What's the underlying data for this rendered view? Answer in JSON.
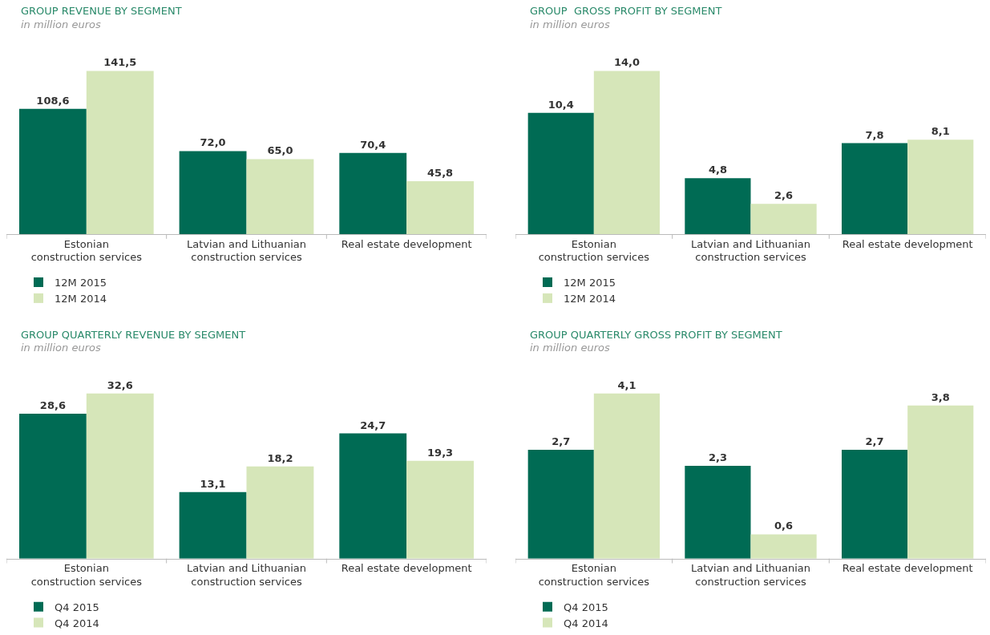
{
  "chart_data": [
    {
      "type": "bar",
      "title": "GROUP REVENUE BY SEGMENT",
      "subtitle": "in million euros",
      "categories": [
        "Estonian\nconstruction services",
        "Latvian and Lithuanian\nconstruction services",
        "Real estate development"
      ],
      "legend": "bottom left",
      "series": [
        {
          "name": "12M 2015",
          "color": "#006b54",
          "values": [
            108.6,
            72.0,
            70.4
          ],
          "value_labels": [
            "108,6",
            "72,0",
            "70,4"
          ]
        },
        {
          "name": "12M 2014",
          "color": "#d6e6b9",
          "values": [
            141.5,
            65.0,
            45.8
          ],
          "value_labels": [
            "141,5",
            "65,0",
            "45,8"
          ]
        }
      ]
    },
    {
      "type": "bar",
      "title": "GROUP  GROSS PROFIT BY SEGMENT",
      "subtitle": "in million euros",
      "categories": [
        "Estonian\nconstruction services",
        "Latvian and Lithuanian\nconstruction services",
        "Real estate development"
      ],
      "legend": "bottom left",
      "series": [
        {
          "name": "12M 2015",
          "color": "#006b54",
          "values": [
            10.4,
            4.8,
            7.8
          ],
          "value_labels": [
            "10,4",
            "4,8",
            "7,8"
          ]
        },
        {
          "name": "12M 2014",
          "color": "#d6e6b9",
          "values": [
            14.0,
            2.6,
            8.1
          ],
          "value_labels": [
            "14,0",
            "2,6",
            "8,1"
          ]
        }
      ]
    },
    {
      "type": "bar",
      "title": "GROUP QUARTERLY REVENUE BY SEGMENT",
      "subtitle": "in million euros",
      "categories": [
        "Estonian\nconstruction services",
        "Latvian and Lithuanian\nconstruction services",
        "Real estate development"
      ],
      "legend": "bottom left",
      "series": [
        {
          "name": "Q4 2015",
          "color": "#006b54",
          "values": [
            28.6,
            13.1,
            24.7
          ],
          "value_labels": [
            "28,6",
            "13,1",
            "24,7"
          ]
        },
        {
          "name": "Q4 2014",
          "color": "#d6e6b9",
          "values": [
            32.6,
            18.2,
            19.3
          ],
          "value_labels": [
            "32,6",
            "18,2",
            "19,3"
          ]
        }
      ]
    },
    {
      "type": "bar",
      "title": "GROUP QUARTERLY GROSS PROFIT BY SEGMENT",
      "subtitle": "in million euros",
      "categories": [
        "Estonian\nconstruction services",
        "Latvian and Lithuanian\nconstruction services",
        "Real estate development"
      ],
      "legend": "bottom left",
      "series": [
        {
          "name": "Q4 2015",
          "color": "#006b54",
          "values": [
            2.7,
            2.3,
            2.7
          ],
          "value_labels": [
            "2,7",
            "2,3",
            "2,7"
          ]
        },
        {
          "name": "Q4 2014",
          "color": "#d6e6b9",
          "values": [
            4.1,
            0.6,
            3.8
          ],
          "value_labels": [
            "4,1",
            "0,6",
            "3,8"
          ]
        }
      ]
    }
  ]
}
